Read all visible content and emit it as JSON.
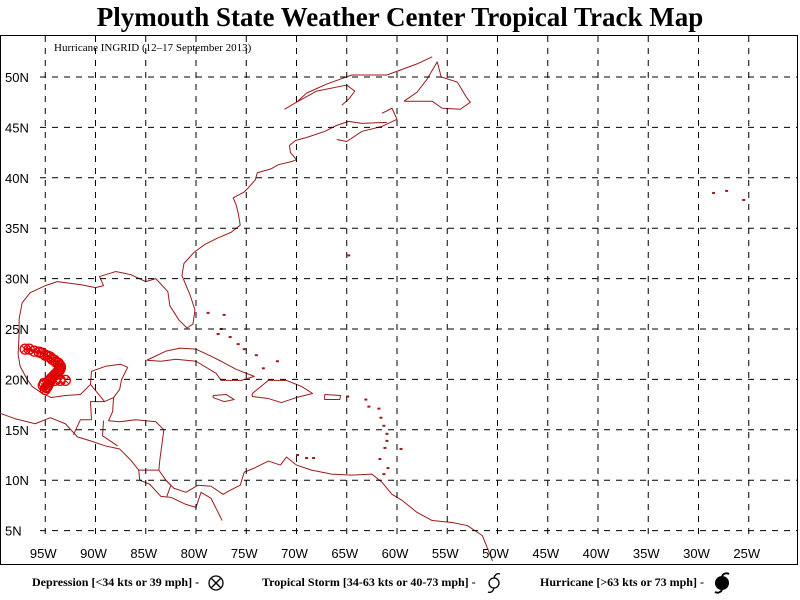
{
  "header": {
    "title": "Plymouth State Weather Center Tropical Track Map"
  },
  "map": {
    "storm_label": "Hurricane INGRID (12–17 September 2013)",
    "lat_labels": [
      "50N",
      "45N",
      "40N",
      "35N",
      "30N",
      "25N",
      "20N",
      "15N",
      "10N",
      "5N"
    ],
    "lon_labels": [
      "95W",
      "90W",
      "85W",
      "80W",
      "75W",
      "70W",
      "65W",
      "60W",
      "55W",
      "50W",
      "45W",
      "40W",
      "35W",
      "30W",
      "25W"
    ],
    "colors": {
      "coastline": "#9b1b1b",
      "track": "#e00000",
      "grid": "#000000"
    },
    "track_positions": [
      [
        -97.0,
        23.0
      ],
      [
        -96.6,
        23.0
      ],
      [
        -96.1,
        22.8
      ],
      [
        -95.6,
        22.7
      ],
      [
        -95.3,
        22.6
      ],
      [
        -95.0,
        22.4
      ],
      [
        -94.7,
        22.3
      ],
      [
        -94.5,
        22.2
      ],
      [
        -94.3,
        22.0
      ],
      [
        -94.1,
        21.9
      ],
      [
        -93.9,
        21.7
      ],
      [
        -93.7,
        21.6
      ],
      [
        -93.6,
        21.4
      ],
      [
        -93.5,
        21.3
      ],
      [
        -93.5,
        21.1
      ],
      [
        -93.6,
        20.9
      ],
      [
        -93.8,
        20.7
      ],
      [
        -94.0,
        20.5
      ],
      [
        -94.2,
        20.3
      ],
      [
        -94.4,
        20.1
      ],
      [
        -94.5,
        19.9
      ],
      [
        -94.6,
        19.7
      ],
      [
        -94.7,
        19.5
      ],
      [
        -94.8,
        19.3
      ],
      [
        -94.9,
        19.2
      ],
      [
        -95.0,
        19.0
      ],
      [
        -94.5,
        19.9
      ],
      [
        -94.0,
        19.9
      ],
      [
        -93.5,
        19.9
      ],
      [
        -93.0,
        19.9
      ],
      [
        -95.2,
        19.4
      ],
      [
        -95.1,
        19.6
      ]
    ]
  },
  "legend": {
    "depression": "Depression [<34 kts or 39 mph] -",
    "tropical_storm": "Tropical Storm [34-63 kts or 40-73 mph] -",
    "hurricane": "Hurricane [>63 kts or 73 mph] -"
  }
}
